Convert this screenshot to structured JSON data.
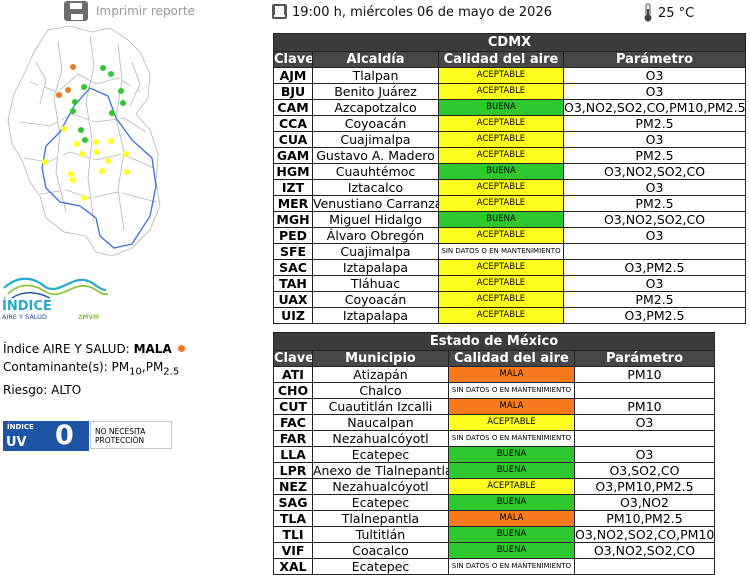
{
  "header": {
    "print_label": "Imprimir reporte",
    "datetime": "19:00 h, miércoles 06 de mayo de 2026",
    "temperature": "25 °C"
  },
  "logo": {
    "line1": "ÍNDICE",
    "line2": "AIRE Y SALUD",
    "line3": "ZMVM"
  },
  "index_info": {
    "label": "Índice AIRE Y SALUD:",
    "value": "MALA",
    "pollutants_label": "Contaminante(s):",
    "pm10_base": "PM",
    "pm10_sub": "10",
    "pm25_base": "PM",
    "pm25_sub": "2.5",
    "risk_label": "Riesgo:",
    "risk_value": "ALTO"
  },
  "uv": {
    "small_label": "ÍNDICE",
    "label": "UV",
    "value": "0",
    "message_line1": "NO NECESITA",
    "message_line2": "PROTECCIÓN"
  },
  "colors": {
    "buena": "#2ec82e",
    "aceptable": "#ffff1e",
    "mala": "#f77b1c",
    "header_bg": "#474747"
  },
  "cdmx": {
    "title": "CDMX",
    "headers": [
      "Clave",
      "Alcaldía",
      "Calidad del aire",
      "Parámetro"
    ],
    "rows": [
      {
        "code": "AJM",
        "name": "Tlalpan",
        "quality": "ACEPTABLE",
        "param": "O3"
      },
      {
        "code": "BJU",
        "name": "Benito Juárez",
        "quality": "ACEPTABLE",
        "param": "O3"
      },
      {
        "code": "CAM",
        "name": "Azcapotzalco",
        "quality": "BUENA",
        "param": "O3,NO2,SO2,CO,PM10,PM2.5"
      },
      {
        "code": "CCA",
        "name": "Coyoacán",
        "quality": "ACEPTABLE",
        "param": "PM2.5"
      },
      {
        "code": "CUA",
        "name": "Cuajimalpa",
        "quality": "ACEPTABLE",
        "param": "O3"
      },
      {
        "code": "GAM",
        "name": "Gustavo A. Madero",
        "quality": "ACEPTABLE",
        "param": "PM2.5"
      },
      {
        "code": "HGM",
        "name": "Cuauhtémoc",
        "quality": "BUENA",
        "param": "O3,NO2,SO2,CO"
      },
      {
        "code": "IZT",
        "name": "Iztacalco",
        "quality": "ACEPTABLE",
        "param": "O3"
      },
      {
        "code": "MER",
        "name": "Venustiano Carranza",
        "quality": "ACEPTABLE",
        "param": "PM2.5"
      },
      {
        "code": "MGH",
        "name": "Miguel Hidalgo",
        "quality": "BUENA",
        "param": "O3,NO2,SO2,CO"
      },
      {
        "code": "PED",
        "name": "Álvaro Obregón",
        "quality": "ACEPTABLE",
        "param": "O3"
      },
      {
        "code": "SFE",
        "name": "Cuajimalpa",
        "quality": "SIN DATOS O EN MANTENIMIENTO",
        "param": ""
      },
      {
        "code": "SAC",
        "name": "Iztapalapa",
        "quality": "ACEPTABLE",
        "param": "O3,PM2.5"
      },
      {
        "code": "TAH",
        "name": "Tláhuac",
        "quality": "ACEPTABLE",
        "param": "O3"
      },
      {
        "code": "UAX",
        "name": "Coyoacán",
        "quality": "ACEPTABLE",
        "param": "PM2.5"
      },
      {
        "code": "UIZ",
        "name": "Iztapalapa",
        "quality": "ACEPTABLE",
        "param": "O3,PM2.5"
      }
    ]
  },
  "edomex": {
    "title": "Estado de México",
    "headers": [
      "Clave",
      "Municipio",
      "Calidad del aire",
      "Parámetro"
    ],
    "rows": [
      {
        "code": "ATI",
        "name": "Atizapán",
        "quality": "MALA",
        "param": "PM10"
      },
      {
        "code": "CHO",
        "name": "Chalco",
        "quality": "SIN DATOS O EN MANTENIMIENTO",
        "param": ""
      },
      {
        "code": "CUT",
        "name": "Cuautitlán Izcalli",
        "quality": "MALA",
        "param": "PM10"
      },
      {
        "code": "FAC",
        "name": "Naucalpan",
        "quality": "ACEPTABLE",
        "param": "O3"
      },
      {
        "code": "FAR",
        "name": "Nezahualcóyotl",
        "quality": "SIN DATOS O EN MANTENIMIENTO",
        "param": ""
      },
      {
        "code": "LLA",
        "name": "Ecatepec",
        "quality": "BUENA",
        "param": "O3"
      },
      {
        "code": "LPR",
        "name": "Anexo de Tlalnepantla",
        "quality": "BUENA",
        "param": "O3,SO2,CO"
      },
      {
        "code": "NEZ",
        "name": "Nezahualcóyotl",
        "quality": "ACEPTABLE",
        "param": "O3,PM10,PM2.5"
      },
      {
        "code": "SAG",
        "name": "Ecatepec",
        "quality": "BUENA",
        "param": "O3,NO2"
      },
      {
        "code": "TLA",
        "name": "Tlalnepantla",
        "quality": "MALA",
        "param": "PM10,PM2.5"
      },
      {
        "code": "TLI",
        "name": "Tultitlán",
        "quality": "BUENA",
        "param": "O3,NO2,SO2,CO,PM10"
      },
      {
        "code": "VIF",
        "name": "Coacalco",
        "quality": "BUENA",
        "param": "O3,NO2,SO2,CO"
      },
      {
        "code": "XAL",
        "name": "Ecatepec",
        "quality": "SIN DATOS O EN MANTENIMIENTO",
        "param": ""
      }
    ]
  }
}
